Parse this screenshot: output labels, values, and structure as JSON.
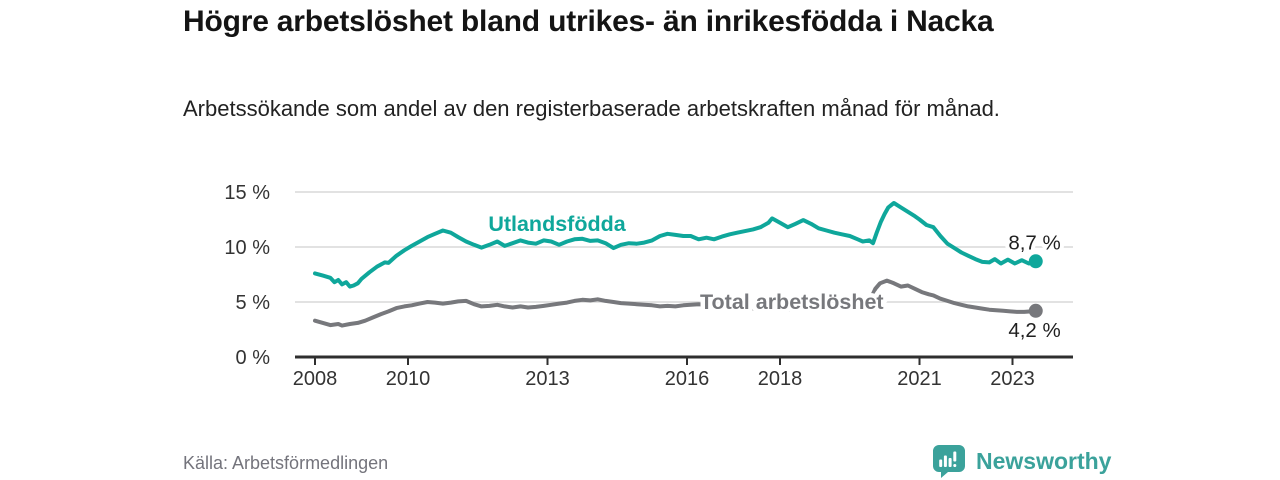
{
  "header": {
    "title": "Högre arbetslöshet bland utrikes- än inrikesfödda i Nacka",
    "subtitle": "Arbetssökande som andel av den registerbaserade arbetskraften månad för månad."
  },
  "footer": {
    "source": "Källa: Arbetsförmedlingen",
    "brand": "Newsworthy",
    "brand_icon": "bar-chart-speech-bubble",
    "brand_color": "#3ba29b"
  },
  "colors": {
    "series_foreign_born": "#0fa79b",
    "series_total": "#77787c",
    "axis": "#2f2f2f",
    "grid": "#d9d9d9",
    "tick_text": "#333333",
    "value_label_text": "#1f1f1f",
    "background": "#ffffff"
  },
  "chart_data": {
    "type": "line",
    "title": "Högre arbetslöshet bland utrikes- än inrikesfödda i Nacka",
    "xlabel": "",
    "ylabel": "",
    "x_range": [
      2007.55,
      2024.3
    ],
    "ylim": [
      0,
      15
    ],
    "grid": true,
    "legend_position": "inline-labels",
    "x_ticks": [
      {
        "year": 2008,
        "label": "2008"
      },
      {
        "year": 2010,
        "label": "2010"
      },
      {
        "year": 2013,
        "label": "2013"
      },
      {
        "year": 2016,
        "label": "2016"
      },
      {
        "year": 2018,
        "label": "2018"
      },
      {
        "year": 2021,
        "label": "2021"
      },
      {
        "year": 2023,
        "label": "2023"
      }
    ],
    "y_ticks": [
      {
        "value": 0,
        "label": "0 %"
      },
      {
        "value": 5,
        "label": "5 %"
      },
      {
        "value": 10,
        "label": "10 %"
      },
      {
        "value": 15,
        "label": "15 %"
      }
    ],
    "series": [
      {
        "name": "Utlandsfödda",
        "color": "#0fa79b",
        "end_label": "8,7 %",
        "end_value": 8.7,
        "points": [
          [
            2008.0,
            7.6
          ],
          [
            2008.17,
            7.4
          ],
          [
            2008.33,
            7.2
          ],
          [
            2008.42,
            6.8
          ],
          [
            2008.5,
            7.0
          ],
          [
            2008.58,
            6.6
          ],
          [
            2008.67,
            6.8
          ],
          [
            2008.75,
            6.4
          ],
          [
            2008.83,
            6.5
          ],
          [
            2008.92,
            6.7
          ],
          [
            2009.0,
            7.1
          ],
          [
            2009.17,
            7.7
          ],
          [
            2009.33,
            8.2
          ],
          [
            2009.5,
            8.6
          ],
          [
            2009.58,
            8.55
          ],
          [
            2009.75,
            9.2
          ],
          [
            2009.92,
            9.7
          ],
          [
            2010.08,
            10.1
          ],
          [
            2010.25,
            10.5
          ],
          [
            2010.42,
            10.9
          ],
          [
            2010.58,
            11.2
          ],
          [
            2010.75,
            11.5
          ],
          [
            2010.92,
            11.3
          ],
          [
            2011.08,
            10.9
          ],
          [
            2011.25,
            10.5
          ],
          [
            2011.42,
            10.2
          ],
          [
            2011.58,
            9.95
          ],
          [
            2011.75,
            10.2
          ],
          [
            2011.92,
            10.5
          ],
          [
            2012.08,
            10.1
          ],
          [
            2012.25,
            10.35
          ],
          [
            2012.42,
            10.6
          ],
          [
            2012.58,
            10.4
          ],
          [
            2012.75,
            10.3
          ],
          [
            2012.92,
            10.6
          ],
          [
            2013.08,
            10.5
          ],
          [
            2013.25,
            10.2
          ],
          [
            2013.42,
            10.5
          ],
          [
            2013.58,
            10.7
          ],
          [
            2013.75,
            10.75
          ],
          [
            2013.92,
            10.55
          ],
          [
            2014.08,
            10.6
          ],
          [
            2014.25,
            10.35
          ],
          [
            2014.42,
            9.9
          ],
          [
            2014.58,
            10.2
          ],
          [
            2014.75,
            10.35
          ],
          [
            2014.92,
            10.3
          ],
          [
            2015.08,
            10.4
          ],
          [
            2015.25,
            10.6
          ],
          [
            2015.42,
            11.0
          ],
          [
            2015.58,
            11.2
          ],
          [
            2015.75,
            11.1
          ],
          [
            2015.92,
            11.0
          ],
          [
            2016.08,
            11.0
          ],
          [
            2016.25,
            10.7
          ],
          [
            2016.42,
            10.85
          ],
          [
            2016.58,
            10.7
          ],
          [
            2016.75,
            10.95
          ],
          [
            2016.92,
            11.15
          ],
          [
            2017.08,
            11.3
          ],
          [
            2017.25,
            11.45
          ],
          [
            2017.42,
            11.6
          ],
          [
            2017.58,
            11.8
          ],
          [
            2017.75,
            12.2
          ],
          [
            2017.83,
            12.6
          ],
          [
            2018.0,
            12.2
          ],
          [
            2018.17,
            11.8
          ],
          [
            2018.33,
            12.1
          ],
          [
            2018.5,
            12.45
          ],
          [
            2018.67,
            12.1
          ],
          [
            2018.83,
            11.7
          ],
          [
            2019.0,
            11.5
          ],
          [
            2019.17,
            11.3
          ],
          [
            2019.33,
            11.15
          ],
          [
            2019.5,
            11.0
          ],
          [
            2019.67,
            10.7
          ],
          [
            2019.78,
            10.5
          ],
          [
            2019.92,
            10.6
          ],
          [
            2020.0,
            10.35
          ],
          [
            2020.08,
            11.3
          ],
          [
            2020.17,
            12.3
          ],
          [
            2020.25,
            13.0
          ],
          [
            2020.33,
            13.6
          ],
          [
            2020.45,
            14.0
          ],
          [
            2020.6,
            13.6
          ],
          [
            2020.75,
            13.2
          ],
          [
            2020.9,
            12.8
          ],
          [
            2021.0,
            12.5
          ],
          [
            2021.15,
            12.0
          ],
          [
            2021.3,
            11.8
          ],
          [
            2021.45,
            11.0
          ],
          [
            2021.6,
            10.3
          ],
          [
            2021.75,
            9.9
          ],
          [
            2021.9,
            9.5
          ],
          [
            2022.05,
            9.2
          ],
          [
            2022.2,
            8.9
          ],
          [
            2022.35,
            8.65
          ],
          [
            2022.5,
            8.6
          ],
          [
            2022.62,
            8.9
          ],
          [
            2022.75,
            8.5
          ],
          [
            2022.9,
            8.85
          ],
          [
            2023.05,
            8.5
          ],
          [
            2023.2,
            8.8
          ],
          [
            2023.35,
            8.5
          ],
          [
            2023.45,
            8.6
          ],
          [
            2023.5,
            8.7
          ]
        ]
      },
      {
        "name": "Total arbetslöshet",
        "color": "#77787c",
        "end_label": "4,2 %",
        "end_value": 4.2,
        "points": [
          [
            2008.0,
            3.3
          ],
          [
            2008.17,
            3.1
          ],
          [
            2008.33,
            2.9
          ],
          [
            2008.5,
            3.0
          ],
          [
            2008.58,
            2.85
          ],
          [
            2008.75,
            3.0
          ],
          [
            2008.92,
            3.1
          ],
          [
            2009.08,
            3.3
          ],
          [
            2009.25,
            3.6
          ],
          [
            2009.42,
            3.9
          ],
          [
            2009.58,
            4.15
          ],
          [
            2009.75,
            4.45
          ],
          [
            2009.92,
            4.6
          ],
          [
            2010.08,
            4.7
          ],
          [
            2010.25,
            4.85
          ],
          [
            2010.42,
            5.0
          ],
          [
            2010.58,
            4.95
          ],
          [
            2010.75,
            4.85
          ],
          [
            2010.92,
            4.95
          ],
          [
            2011.08,
            5.05
          ],
          [
            2011.25,
            5.1
          ],
          [
            2011.42,
            4.8
          ],
          [
            2011.58,
            4.6
          ],
          [
            2011.75,
            4.65
          ],
          [
            2011.92,
            4.75
          ],
          [
            2012.08,
            4.6
          ],
          [
            2012.25,
            4.5
          ],
          [
            2012.42,
            4.6
          ],
          [
            2012.58,
            4.5
          ],
          [
            2012.75,
            4.55
          ],
          [
            2012.92,
            4.65
          ],
          [
            2013.08,
            4.75
          ],
          [
            2013.25,
            4.85
          ],
          [
            2013.42,
            4.95
          ],
          [
            2013.58,
            5.1
          ],
          [
            2013.75,
            5.2
          ],
          [
            2013.92,
            5.15
          ],
          [
            2014.08,
            5.25
          ],
          [
            2014.25,
            5.1
          ],
          [
            2014.42,
            5.0
          ],
          [
            2014.58,
            4.9
          ],
          [
            2014.75,
            4.85
          ],
          [
            2014.92,
            4.8
          ],
          [
            2015.08,
            4.75
          ],
          [
            2015.25,
            4.7
          ],
          [
            2015.42,
            4.6
          ],
          [
            2015.58,
            4.65
          ],
          [
            2015.75,
            4.6
          ],
          [
            2015.92,
            4.7
          ],
          [
            2016.08,
            4.75
          ],
          [
            2016.25,
            4.8
          ],
          [
            2016.5,
            4.7
          ],
          [
            2016.75,
            4.6
          ],
          [
            2017.0,
            4.5
          ],
          [
            2017.25,
            4.45
          ],
          [
            2017.5,
            4.4
          ],
          [
            2017.75,
            4.35
          ],
          [
            2018.0,
            4.3
          ],
          [
            2018.25,
            4.3
          ],
          [
            2018.5,
            4.35
          ],
          [
            2018.75,
            4.4
          ],
          [
            2019.0,
            4.45
          ],
          [
            2019.25,
            4.5
          ],
          [
            2019.5,
            4.6
          ],
          [
            2019.75,
            4.8
          ],
          [
            2019.95,
            5.3
          ],
          [
            2020.05,
            6.2
          ],
          [
            2020.15,
            6.7
          ],
          [
            2020.3,
            6.95
          ],
          [
            2020.45,
            6.7
          ],
          [
            2020.6,
            6.4
          ],
          [
            2020.75,
            6.5
          ],
          [
            2020.9,
            6.2
          ],
          [
            2021.05,
            5.9
          ],
          [
            2021.2,
            5.7
          ],
          [
            2021.3,
            5.6
          ],
          [
            2021.45,
            5.3
          ],
          [
            2021.6,
            5.1
          ],
          [
            2021.75,
            4.9
          ],
          [
            2021.9,
            4.75
          ],
          [
            2022.05,
            4.6
          ],
          [
            2022.2,
            4.5
          ],
          [
            2022.35,
            4.4
          ],
          [
            2022.5,
            4.3
          ],
          [
            2022.65,
            4.25
          ],
          [
            2022.8,
            4.2
          ],
          [
            2022.95,
            4.15
          ],
          [
            2023.1,
            4.1
          ],
          [
            2023.25,
            4.1
          ],
          [
            2023.4,
            4.15
          ],
          [
            2023.5,
            4.2
          ]
        ]
      }
    ]
  }
}
